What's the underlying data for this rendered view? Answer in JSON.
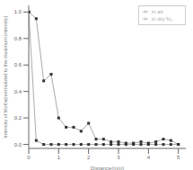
{
  "chart_data": {
    "type": "line",
    "xlabel": "Distance(mm)",
    "ylabel": "Intensity of MoKα(normalized to the maximum intensity)",
    "x": [
      0.0,
      0.25,
      0.5,
      0.75,
      1.0,
      1.25,
      1.5,
      1.75,
      2.0,
      2.25,
      2.5,
      2.75,
      3.0,
      3.25,
      3.5,
      3.75,
      4.0,
      4.25,
      4.5,
      4.75,
      5.0
    ],
    "series": [
      {
        "name": "in air",
        "color": "#aaaaaa",
        "marker": "square",
        "values": [
          1.0,
          0.95,
          0.48,
          0.53,
          0.2,
          0.13,
          0.13,
          0.1,
          0.16,
          0.04,
          0.04,
          0.02,
          0.02,
          0.01,
          0.01,
          0.02,
          0.01,
          0.02,
          0.04,
          0.03,
          0.0
        ]
      },
      {
        "name": "in dry N₂",
        "color": "#aaaaaa",
        "marker": "square",
        "values": [
          1.0,
          0.03,
          0.0,
          0.0,
          0.0,
          0.0,
          0.0,
          0.0,
          0.0,
          0.0,
          0.0,
          0.0,
          0.0,
          0.0,
          0.0,
          0.0,
          0.0,
          0.0,
          0.0,
          0.0,
          0.0
        ]
      }
    ],
    "xlim": [
      0,
      5.25
    ],
    "ylim": [
      -0.03,
      1.05
    ],
    "xticks": [
      0,
      1,
      2,
      3,
      4,
      5
    ],
    "yticks": [
      {
        "value": 0,
        "label": "0.0"
      },
      0.2,
      0.4,
      0.6,
      0.8,
      {
        "value": 1,
        "label": "1.0"
      }
    ],
    "legend": "upper right",
    "grid": false
  }
}
